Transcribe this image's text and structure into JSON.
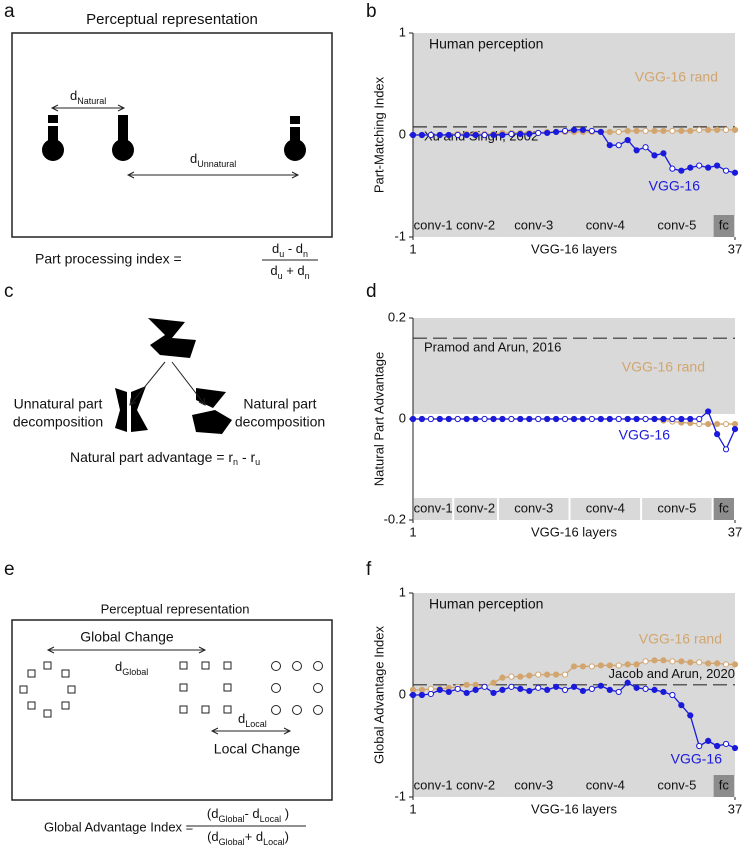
{
  "panel_labels": [
    "a",
    "b",
    "c",
    "d",
    "e",
    "f"
  ],
  "panel_a": {
    "title": "Perceptual representation",
    "d_natural": [
      {
        "t": "d"
      },
      {
        "sub": "Natural"
      }
    ],
    "d_unnatural": [
      {
        "t": "d"
      },
      {
        "sub": "Unnatural"
      }
    ],
    "formula_label": "Part processing index  =",
    "numerator": [
      {
        "t": "d"
      },
      {
        "sub": "u"
      },
      {
        "t": " - d"
      },
      {
        "sub": "n"
      }
    ],
    "denominator": [
      {
        "t": "d"
      },
      {
        "sub": "u"
      },
      {
        "t": " + d"
      },
      {
        "sub": "n"
      }
    ]
  },
  "panel_c": {
    "left": [
      "Unnatural part",
      "decomposition"
    ],
    "right": [
      "Natural part",
      "decomposition"
    ],
    "formula": [
      {
        "t": "Natural part advantage  =  r"
      },
      {
        "sub": "n"
      },
      {
        "t": " - r"
      },
      {
        "sub": "u"
      }
    ]
  },
  "panel_e": {
    "title": "Perceptual representation",
    "global_change": "Global Change",
    "d_global": [
      {
        "t": "d"
      },
      {
        "sub": "Global"
      }
    ],
    "d_local": [
      {
        "t": "d"
      },
      {
        "sub": "Local"
      }
    ],
    "local_change": "Local Change",
    "formula_label": "Global Advantage Index =",
    "numerator": [
      {
        "t": "(d"
      },
      {
        "sub": "Global"
      },
      {
        "t": "- d"
      },
      {
        "sub": "Local"
      },
      {
        "t": " )"
      }
    ],
    "denominator": [
      {
        "t": "(d"
      },
      {
        "sub": "Global"
      },
      {
        "t": "+ d"
      },
      {
        "sub": "Local"
      },
      {
        "t": ")"
      }
    ]
  },
  "chart_data": [
    {
      "type": "line",
      "ylabel": "Part-Matching Index",
      "xlabel": "VGG-16 layers",
      "x": [
        1,
        2,
        3,
        4,
        5,
        6,
        7,
        8,
        9,
        10,
        11,
        12,
        13,
        14,
        15,
        16,
        17,
        18,
        19,
        20,
        21,
        22,
        23,
        24,
        25,
        26,
        27,
        28,
        29,
        30,
        31,
        32,
        33,
        34,
        35,
        36,
        37
      ],
      "xlim": [
        1,
        37
      ],
      "xticks": [
        1,
        37
      ],
      "ylim": [
        -1,
        1
      ],
      "yticks": [
        -1,
        0,
        1
      ],
      "shade": [
        -1,
        1
      ],
      "annotation": "Human perception",
      "reference": {
        "value": 0.08,
        "label": "Xu and Singh, 2002"
      },
      "series": [
        {
          "name": "VGG-16 rand",
          "color": "#d2a56e",
          "values": [
            0,
            0,
            0,
            0,
            0,
            0.01,
            0.01,
            0.01,
            0.01,
            0.01,
            0.02,
            0.02,
            0.02,
            0.02,
            0.02,
            0.03,
            0.03,
            0.03,
            0.03,
            0.03,
            0.03,
            0.03,
            0.03,
            0.03,
            0.04,
            0.04,
            0.04,
            0.04,
            0.04,
            0.04,
            0.04,
            0.04,
            0.05,
            0.05,
            0.05,
            0.05,
            0.05
          ]
        },
        {
          "name": "VGG-16",
          "color": "#1a1adc",
          "values": [
            0,
            0,
            0,
            0,
            0,
            0,
            0,
            0,
            0,
            0,
            0,
            0.01,
            0.01,
            0.01,
            0.02,
            0.02,
            0.03,
            0.04,
            0.05,
            0.05,
            0.04,
            0.03,
            -0.1,
            -0.1,
            -0.05,
            -0.15,
            -0.12,
            -0.2,
            -0.18,
            -0.33,
            -0.35,
            -0.32,
            -0.3,
            -0.32,
            -0.3,
            -0.35,
            -0.37
          ]
        }
      ],
      "layer_groups": [
        {
          "label": "conv-1",
          "start": 1,
          "end": 5,
          "color": "#d9d9d9"
        },
        {
          "label": "conv-2",
          "start": 6,
          "end": 10,
          "color": "#d9d9d9"
        },
        {
          "label": "conv-3",
          "start": 11,
          "end": 18,
          "color": "#d9d9d9"
        },
        {
          "label": "conv-4",
          "start": 19,
          "end": 26,
          "color": "#d9d9d9"
        },
        {
          "label": "conv-5",
          "start": 27,
          "end": 34,
          "color": "#d9d9d9"
        },
        {
          "label": "fc",
          "start": 35,
          "end": 37,
          "color": "#8c8c8c"
        }
      ]
    },
    {
      "type": "line",
      "ylabel": "Natural Part Advantage",
      "xlabel": "VGG-16 layers",
      "x": [
        1,
        2,
        3,
        4,
        5,
        6,
        7,
        8,
        9,
        10,
        11,
        12,
        13,
        14,
        15,
        16,
        17,
        18,
        19,
        20,
        21,
        22,
        23,
        24,
        25,
        26,
        27,
        28,
        29,
        30,
        31,
        32,
        33,
        34,
        35,
        36,
        37
      ],
      "xlim": [
        1,
        37
      ],
      "xticks": [
        1,
        37
      ],
      "ylim": [
        -0.2,
        0.2
      ],
      "yticks": [
        -0.2,
        0,
        0.2
      ],
      "shade": [
        0.01,
        0.2
      ],
      "reference": {
        "value": 0.16,
        "label": "Pramod and Arun, 2016"
      },
      "series": [
        {
          "name": "VGG-16 rand",
          "color": "#d2a56e",
          "values": [
            0,
            0,
            0,
            0,
            0,
            0,
            0,
            0,
            0,
            0,
            0,
            0,
            0,
            0,
            0,
            0,
            0,
            0,
            0,
            0,
            0,
            0,
            0,
            0,
            0,
            0,
            0,
            0,
            -0.003,
            -0.005,
            -0.007,
            -0.008,
            -0.01,
            -0.01,
            -0.01,
            -0.01,
            -0.01
          ]
        },
        {
          "name": "VGG-16",
          "color": "#1a1adc",
          "values": [
            0,
            0,
            0,
            0,
            0,
            0,
            0,
            0,
            0,
            0,
            0,
            0,
            0,
            0,
            0,
            0,
            0,
            0,
            0,
            0,
            0,
            0,
            0,
            0,
            0,
            0,
            0,
            0,
            0,
            0,
            0,
            0,
            0,
            0.015,
            -0.03,
            -0.06,
            -0.02
          ]
        }
      ],
      "layer_groups": [
        {
          "label": "conv-1",
          "start": 1,
          "end": 5,
          "color": "#d9d9d9"
        },
        {
          "label": "conv-2",
          "start": 6,
          "end": 10,
          "color": "#d9d9d9"
        },
        {
          "label": "conv-3",
          "start": 11,
          "end": 18,
          "color": "#d9d9d9"
        },
        {
          "label": "conv-4",
          "start": 19,
          "end": 26,
          "color": "#d9d9d9"
        },
        {
          "label": "conv-5",
          "start": 27,
          "end": 34,
          "color": "#d9d9d9"
        },
        {
          "label": "fc",
          "start": 35,
          "end": 37,
          "color": "#8c8c8c"
        }
      ]
    },
    {
      "type": "line",
      "ylabel": "Global Advantage Index",
      "xlabel": "VGG-16 layers",
      "x": [
        1,
        2,
        3,
        4,
        5,
        6,
        7,
        8,
        9,
        10,
        11,
        12,
        13,
        14,
        15,
        16,
        17,
        18,
        19,
        20,
        21,
        22,
        23,
        24,
        25,
        26,
        27,
        28,
        29,
        30,
        31,
        32,
        33,
        34,
        35,
        36,
        37
      ],
      "xlim": [
        1,
        37
      ],
      "xticks": [
        1,
        37
      ],
      "ylim": [
        -1,
        1
      ],
      "yticks": [
        -1,
        0,
        1
      ],
      "shade": [
        -1,
        1
      ],
      "annotation": "Human perception",
      "reference": {
        "value": 0.1,
        "label": "Jacob and Arun, 2020"
      },
      "series": [
        {
          "name": "VGG-16 rand",
          "color": "#d2a56e",
          "values": [
            0.05,
            0.05,
            0.06,
            0.06,
            0.07,
            0.08,
            0.1,
            0.1,
            0.08,
            0.12,
            0.17,
            0.18,
            0.18,
            0.19,
            0.2,
            0.2,
            0.2,
            0.2,
            0.28,
            0.28,
            0.28,
            0.29,
            0.29,
            0.29,
            0.3,
            0.3,
            0.33,
            0.34,
            0.34,
            0.33,
            0.33,
            0.32,
            0.32,
            0.31,
            0.31,
            0.3,
            0.3
          ]
        },
        {
          "name": "VGG-16",
          "color": "#1a1adc",
          "values": [
            0,
            0,
            0.01,
            0.05,
            0.03,
            0.06,
            0.02,
            0.05,
            0.08,
            0.02,
            0.05,
            0.08,
            0.06,
            0.04,
            0.07,
            0.05,
            0.08,
            0.05,
            0.08,
            0.04,
            0.06,
            0.09,
            0.05,
            0.03,
            0.12,
            0.07,
            0.06,
            0.05,
            0.03,
            0,
            -0.1,
            -0.2,
            -0.5,
            -0.45,
            -0.5,
            -0.48,
            -0.52
          ]
        }
      ],
      "layer_groups": [
        {
          "label": "conv-1",
          "start": 1,
          "end": 5,
          "color": "#d9d9d9"
        },
        {
          "label": "conv-2",
          "start": 6,
          "end": 10,
          "color": "#d9d9d9"
        },
        {
          "label": "conv-3",
          "start": 11,
          "end": 18,
          "color": "#d9d9d9"
        },
        {
          "label": "conv-4",
          "start": 19,
          "end": 26,
          "color": "#d9d9d9"
        },
        {
          "label": "conv-5",
          "start": 27,
          "end": 34,
          "color": "#d9d9d9"
        },
        {
          "label": "fc",
          "start": 35,
          "end": 37,
          "color": "#8c8c8c"
        }
      ]
    }
  ]
}
